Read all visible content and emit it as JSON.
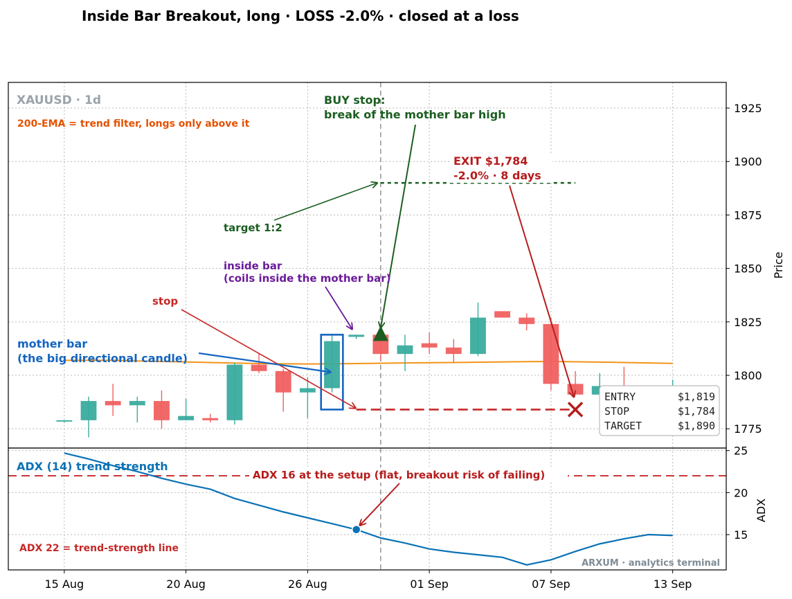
{
  "title": "Inside Bar Breakout, long · LOSS -2.0% · closed at a loss",
  "colors": {
    "up": "#3aab9e",
    "down": "#f06060",
    "ema": "#f29318",
    "stop": "#c62828",
    "target": "#1b5e20",
    "adx": "#0a72b5",
    "inside": "#6a1b9a",
    "mother": "#1565c0",
    "ema_note": "#e65100",
    "exit": "#b71c1c",
    "grid": "#b8b8b8"
  },
  "chart_data": [
    {
      "type": "candlestick",
      "symbol_label": "XAUUSD · 1d",
      "ylabel": "Price",
      "ylim": [
        1766,
        1937
      ],
      "yticks": [
        1775,
        1800,
        1825,
        1850,
        1875,
        1900,
        1925
      ],
      "xticks": [
        {
          "day": 0,
          "label": "15 Aug"
        },
        {
          "day": 5,
          "label": "20 Aug"
        },
        {
          "day": 10,
          "label": "26 Aug"
        },
        {
          "day": 15,
          "label": "01 Sep"
        },
        {
          "day": 20,
          "label": "07 Sep"
        },
        {
          "day": 25,
          "label": "13 Sep"
        }
      ],
      "xlim": [
        -2.3,
        27.2
      ],
      "grid": true,
      "candles": [
        {
          "day": 0,
          "open": 1779,
          "high": 1779,
          "low": 1778,
          "close": 1779
        },
        {
          "day": 1,
          "open": 1779,
          "high": 1790,
          "low": 1771,
          "close": 1788
        },
        {
          "day": 2,
          "open": 1788,
          "high": 1796,
          "low": 1781,
          "close": 1786
        },
        {
          "day": 3,
          "open": 1786,
          "high": 1790,
          "low": 1778,
          "close": 1788
        },
        {
          "day": 4,
          "open": 1788,
          "high": 1793,
          "low": 1775,
          "close": 1779
        },
        {
          "day": 5,
          "open": 1779,
          "high": 1789,
          "low": 1779,
          "close": 1781
        },
        {
          "day": 6,
          "open": 1780,
          "high": 1782,
          "low": 1778,
          "close": 1779
        },
        {
          "day": 7,
          "open": 1779,
          "high": 1806,
          "low": 1777,
          "close": 1805
        },
        {
          "day": 8,
          "open": 1805,
          "high": 1810,
          "low": 1801,
          "close": 1802
        },
        {
          "day": 9,
          "open": 1802,
          "high": 1803,
          "low": 1783,
          "close": 1792
        },
        {
          "day": 10,
          "open": 1792,
          "high": 1799,
          "low": 1780,
          "close": 1794
        },
        {
          "day": 11,
          "open": 1794,
          "high": 1819,
          "low": 1792,
          "close": 1816
        },
        {
          "day": 12,
          "open": 1818,
          "high": 1819,
          "low": 1817,
          "close": 1819
        },
        {
          "day": 13,
          "open": 1819,
          "high": 1820,
          "low": 1807,
          "close": 1810
        },
        {
          "day": 14,
          "open": 1810,
          "high": 1819,
          "low": 1802,
          "close": 1814
        },
        {
          "day": 15,
          "open": 1815,
          "high": 1820,
          "low": 1810,
          "close": 1813
        },
        {
          "day": 16,
          "open": 1813,
          "high": 1817,
          "low": 1806,
          "close": 1810
        },
        {
          "day": 17,
          "open": 1810,
          "high": 1834,
          "low": 1809,
          "close": 1827
        },
        {
          "day": 18,
          "open": 1830,
          "high": 1830,
          "low": 1827,
          "close": 1827
        },
        {
          "day": 19,
          "open": 1827,
          "high": 1829,
          "low": 1821,
          "close": 1824
        },
        {
          "day": 20,
          "open": 1824,
          "high": 1827,
          "low": 1793,
          "close": 1796
        },
        {
          "day": 21,
          "open": 1796,
          "high": 1802,
          "low": 1791,
          "close": 1791
        },
        {
          "day": 22,
          "open": 1791,
          "high": 1801,
          "low": 1784,
          "close": 1795
        },
        {
          "day": 23,
          "open": 1795,
          "high": 1804,
          "low": 1783,
          "close": 1788
        },
        {
          "day": 24,
          "open": 1789,
          "high": 1790,
          "low": 1787,
          "close": 1788
        },
        {
          "day": 25,
          "open": 1788,
          "high": 1798,
          "low": 1786,
          "close": 1793
        }
      ],
      "ema200": {
        "name": "200-EMA",
        "days": [
          0,
          2,
          4,
          6,
          8,
          10,
          12,
          14,
          16,
          18,
          20,
          22,
          24,
          25
        ],
        "values": [
          1807,
          1807,
          1806.5,
          1806,
          1805.5,
          1805.3,
          1805.5,
          1805.8,
          1806,
          1806.3,
          1806.5,
          1806.2,
          1805.8,
          1805.6
        ]
      },
      "levels": {
        "entry": 1819,
        "stop": 1784,
        "target": 1890
      },
      "entry_day": 13,
      "exit": {
        "day": 21,
        "price": 1784
      },
      "breakout_line_day": 13,
      "stop_line": [
        12,
        21
      ],
      "target_line": [
        13,
        21
      ],
      "inside_bar_box": {
        "day": 11,
        "low": 1784,
        "high": 1819
      },
      "legend_box": [
        {
          "label": "ENTRY",
          "value": "$1,819"
        },
        {
          "label": "STOP",
          "value": "$1,784"
        },
        {
          "label": "TARGET",
          "value": "$1,890"
        }
      ],
      "annotations": {
        "ema_note": "200-EMA = trend filter, longs only above it",
        "buy_stop_line1": "BUY stop:",
        "buy_stop_line2": "break of the mother bar high",
        "exit_line1": "EXIT $1,784",
        "exit_line2": "-2.0%  ·  8 days",
        "target": "target 1:2",
        "inside_line1": "inside bar",
        "inside_line2": "(coils inside the mother bar)",
        "stop": "stop",
        "mother_line1": "mother bar",
        "mother_line2": "(the big directional candle)"
      }
    },
    {
      "type": "line",
      "name": "ADX (14)",
      "ylabel": "ADX",
      "ylim": [
        10.8,
        25.3
      ],
      "yticks": [
        15,
        20,
        25
      ],
      "threshold": 22,
      "setup_day": 12,
      "setup_value": 15.6,
      "days": [
        0,
        1,
        2,
        3,
        4,
        5,
        6,
        7,
        8,
        9,
        10,
        11,
        12,
        13,
        14,
        15,
        16,
        17,
        18,
        19,
        20,
        21,
        22,
        23,
        24,
        25
      ],
      "values": [
        24.7,
        24,
        23.2,
        22.5,
        21.7,
        21,
        20.4,
        19.3,
        18.5,
        17.7,
        17,
        16.3,
        15.6,
        14.6,
        14,
        13.3,
        12.9,
        12.6,
        12.3,
        11.4,
        12,
        13,
        13.9,
        14.5,
        15,
        14.9
      ],
      "annotations": {
        "label": "ADX (14) trend strength",
        "setup": "ADX 16 at the setup (flat, breakout risk of failing)",
        "threshold": "ADX 22 = trend-strength line"
      }
    }
  ],
  "footer": "ARXUM · analytics terminal"
}
